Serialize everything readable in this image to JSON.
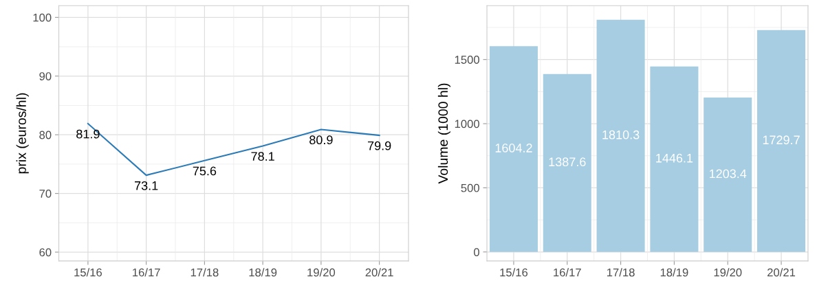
{
  "chart_data": [
    {
      "type": "line",
      "ylabel": "prix (euros/hl)",
      "categories": [
        "15/16",
        "16/17",
        "17/18",
        "18/19",
        "19/20",
        "20/21"
      ],
      "series": [
        {
          "color": "#2c7bb6",
          "values": [
            81.9,
            73.1,
            75.6,
            78.1,
            80.9,
            79.9
          ]
        }
      ],
      "ylim": [
        58.5,
        102
      ],
      "yticks": [
        60,
        70,
        80,
        90,
        100
      ],
      "grid": true,
      "data_labels": true,
      "marker": "none",
      "line_style": "solid"
    },
    {
      "type": "bar",
      "ylabel": "Volume (1000 hl)",
      "categories": [
        "15/16",
        "16/17",
        "17/18",
        "18/19",
        "19/20",
        "20/21"
      ],
      "series": [
        {
          "color": "#a6cde2",
          "values": [
            1604.2,
            1387.6,
            1810.3,
            1446.1,
            1203.4,
            1729.7
          ]
        }
      ],
      "ylim": [
        -70,
        1920
      ],
      "yticks": [
        0,
        500,
        1000,
        1500
      ],
      "grid": true,
      "data_labels": true
    }
  ]
}
